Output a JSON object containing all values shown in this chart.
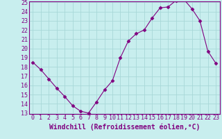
{
  "x": [
    0,
    1,
    2,
    3,
    4,
    5,
    6,
    7,
    8,
    9,
    10,
    11,
    12,
    13,
    14,
    15,
    16,
    17,
    18,
    19,
    20,
    21,
    22,
    23
  ],
  "y": [
    18.5,
    17.7,
    16.7,
    15.7,
    14.8,
    13.8,
    13.2,
    13.0,
    14.2,
    15.5,
    16.5,
    19.0,
    20.8,
    21.6,
    22.0,
    23.3,
    24.4,
    24.5,
    25.2,
    25.3,
    24.3,
    23.0,
    19.7,
    18.4
  ],
  "line_color": "#800080",
  "marker": "D",
  "marker_size": 2.5,
  "bg_color": "#c8eeee",
  "grid_color": "#a8d8d8",
  "xlabel": "Windchill (Refroidissement éolien,°C)",
  "ylim": [
    13,
    25
  ],
  "xlim": [
    -0.5,
    23.5
  ],
  "yticks": [
    13,
    14,
    15,
    16,
    17,
    18,
    19,
    20,
    21,
    22,
    23,
    24,
    25
  ],
  "xticks": [
    0,
    1,
    2,
    3,
    4,
    5,
    6,
    7,
    8,
    9,
    10,
    11,
    12,
    13,
    14,
    15,
    16,
    17,
    18,
    19,
    20,
    21,
    22,
    23
  ],
  "xlabel_fontsize": 7,
  "tick_fontsize": 6,
  "line_color_hex": "#800080",
  "tick_color": "#800080",
  "axis_color": "#800080",
  "spine_color": "#800080"
}
